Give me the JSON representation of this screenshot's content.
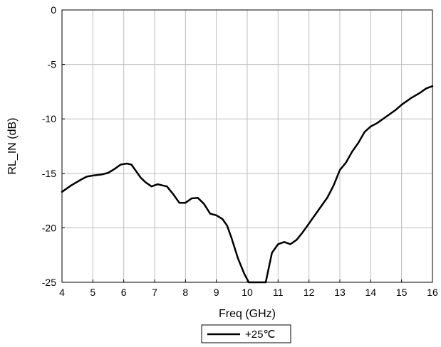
{
  "chart_data": {
    "type": "line",
    "title": "",
    "xlabel": "Freq (GHz)",
    "ylabel": "RL_IN (dB)",
    "xlim": [
      4,
      16
    ],
    "ylim": [
      -25,
      0
    ],
    "x_ticks": [
      4,
      5,
      6,
      7,
      8,
      9,
      10,
      11,
      12,
      13,
      14,
      15,
      16
    ],
    "y_ticks": [
      0,
      -5,
      -10,
      -15,
      -20,
      -25
    ],
    "x_tick_labels": [
      "4",
      "5",
      "6",
      "7",
      "8",
      "9",
      "10",
      "11",
      "12",
      "13",
      "14",
      "15",
      "16"
    ],
    "y_tick_labels": [
      "0",
      "-5",
      "-10",
      "-15",
      "-20",
      "-25"
    ],
    "grid": true,
    "legend_position": "bottom-center",
    "series": [
      {
        "name": "+25℃",
        "color": "#000000",
        "x": [
          4.0,
          4.3,
          4.6,
          4.8,
          5.0,
          5.3,
          5.5,
          5.7,
          5.9,
          6.1,
          6.25,
          6.4,
          6.55,
          6.7,
          6.9,
          7.1,
          7.25,
          7.4,
          7.6,
          7.8,
          8.0,
          8.2,
          8.4,
          8.6,
          8.8,
          9.0,
          9.2,
          9.35,
          9.5,
          9.7,
          9.9,
          10.05,
          10.6,
          10.8,
          11.0,
          11.2,
          11.4,
          11.6,
          11.8,
          12.0,
          12.3,
          12.6,
          12.8,
          13.0,
          13.2,
          13.4,
          13.6,
          13.8,
          14.0,
          14.2,
          14.5,
          14.8,
          15.0,
          15.3,
          15.6,
          15.8,
          16.0
        ],
        "y": [
          -16.7,
          -16.1,
          -15.6,
          -15.3,
          -15.2,
          -15.1,
          -14.95,
          -14.6,
          -14.2,
          -14.1,
          -14.2,
          -14.8,
          -15.4,
          -15.8,
          -16.2,
          -16.0,
          -16.1,
          -16.2,
          -16.9,
          -17.7,
          -17.7,
          -17.3,
          -17.25,
          -17.8,
          -18.7,
          -18.85,
          -19.2,
          -19.8,
          -21.0,
          -22.8,
          -24.2,
          -25.0,
          -25.0,
          -22.3,
          -21.5,
          -21.3,
          -21.5,
          -21.1,
          -20.4,
          -19.6,
          -18.4,
          -17.2,
          -16.1,
          -14.7,
          -14.0,
          -13.0,
          -12.2,
          -11.2,
          -10.7,
          -10.4,
          -9.8,
          -9.2,
          -8.7,
          -8.1,
          -7.6,
          -7.2,
          -7.0
        ]
      }
    ]
  }
}
